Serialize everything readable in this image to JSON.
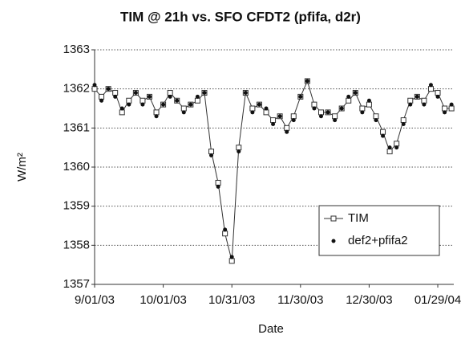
{
  "chart_data": {
    "type": "line",
    "title": "TIM @ 21h vs. SFO CFDT2 (pfifa, d2r)",
    "xlabel": "Date",
    "ylabel": "W/m²",
    "x": [
      "2003-09-01",
      "2003-09-04",
      "2003-09-07",
      "2003-09-10",
      "2003-09-13",
      "2003-09-16",
      "2003-09-19",
      "2003-09-22",
      "2003-09-25",
      "2003-09-28",
      "2003-10-01",
      "2003-10-04",
      "2003-10-07",
      "2003-10-10",
      "2003-10-13",
      "2003-10-16",
      "2003-10-19",
      "2003-10-22",
      "2003-10-25",
      "2003-10-28",
      "2003-10-31",
      "2003-11-03",
      "2003-11-06",
      "2003-11-09",
      "2003-11-12",
      "2003-11-15",
      "2003-11-18",
      "2003-11-21",
      "2003-11-24",
      "2003-11-27",
      "2003-11-30",
      "2003-12-03",
      "2003-12-06",
      "2003-12-09",
      "2003-12-12",
      "2003-12-15",
      "2003-12-18",
      "2003-12-21",
      "2003-12-24",
      "2003-12-27",
      "2003-12-30",
      "2004-01-02",
      "2004-01-05",
      "2004-01-08",
      "2004-01-11",
      "2004-01-14",
      "2004-01-17",
      "2004-01-20",
      "2004-01-23",
      "2004-01-26",
      "2004-01-29",
      "2004-02-01",
      "2004-02-04"
    ],
    "series": [
      {
        "name": "TIM",
        "color": "#333333",
        "marker": "square",
        "line": true,
        "values": [
          1362.0,
          1361.8,
          1362.0,
          1361.9,
          1361.4,
          1361.7,
          1361.9,
          1361.7,
          1361.8,
          1361.4,
          1361.6,
          1361.9,
          1361.7,
          1361.5,
          1361.6,
          1361.7,
          1361.9,
          1360.4,
          1359.6,
          1358.3,
          1357.6,
          1360.5,
          1361.9,
          1361.5,
          1361.6,
          1361.4,
          1361.2,
          1361.3,
          1361.0,
          1361.3,
          1361.8,
          1362.2,
          1361.6,
          1361.4,
          1361.4,
          1361.3,
          1361.5,
          1361.7,
          1361.9,
          1361.5,
          1361.6,
          1361.3,
          1360.9,
          1360.4,
          1360.6,
          1361.2,
          1361.7,
          1361.8,
          1361.7,
          1362.0,
          1361.9,
          1361.5,
          1361.5
        ]
      },
      {
        "name": "def2+pfifa2",
        "color": "#111111",
        "marker": "dot",
        "line": false,
        "values": [
          1362.1,
          1361.7,
          1362.0,
          1361.8,
          1361.5,
          1361.6,
          1361.9,
          1361.6,
          1361.8,
          1361.3,
          1361.6,
          1361.8,
          1361.7,
          1361.4,
          1361.6,
          1361.8,
          1361.9,
          1360.3,
          1359.5,
          1358.4,
          1357.7,
          1360.4,
          1361.9,
          1361.4,
          1361.6,
          1361.5,
          1361.1,
          1361.3,
          1360.9,
          1361.2,
          1361.8,
          1362.2,
          1361.5,
          1361.3,
          1361.4,
          1361.2,
          1361.5,
          1361.8,
          1361.9,
          1361.4,
          1361.7,
          1361.2,
          1360.8,
          1360.5,
          1360.5,
          1361.1,
          1361.6,
          1361.8,
          1361.6,
          1362.1,
          1361.8,
          1361.4,
          1361.6
        ]
      }
    ],
    "xlim": [
      "2003-09-01",
      "2004-02-05"
    ],
    "xticks": [
      {
        "value": "2003-09-01",
        "label": "9/01/03"
      },
      {
        "value": "2003-10-01",
        "label": "10/01/03"
      },
      {
        "value": "2003-10-31",
        "label": "10/31/03"
      },
      {
        "value": "2003-11-30",
        "label": "11/30/03"
      },
      {
        "value": "2003-12-30",
        "label": "12/30/03"
      },
      {
        "value": "2004-01-29",
        "label": "01/29/04"
      }
    ],
    "ylim": [
      1357,
      1363
    ],
    "yticks": [
      1357,
      1358,
      1359,
      1360,
      1361,
      1362,
      1363
    ],
    "grid": true,
    "legend": "lower right"
  }
}
